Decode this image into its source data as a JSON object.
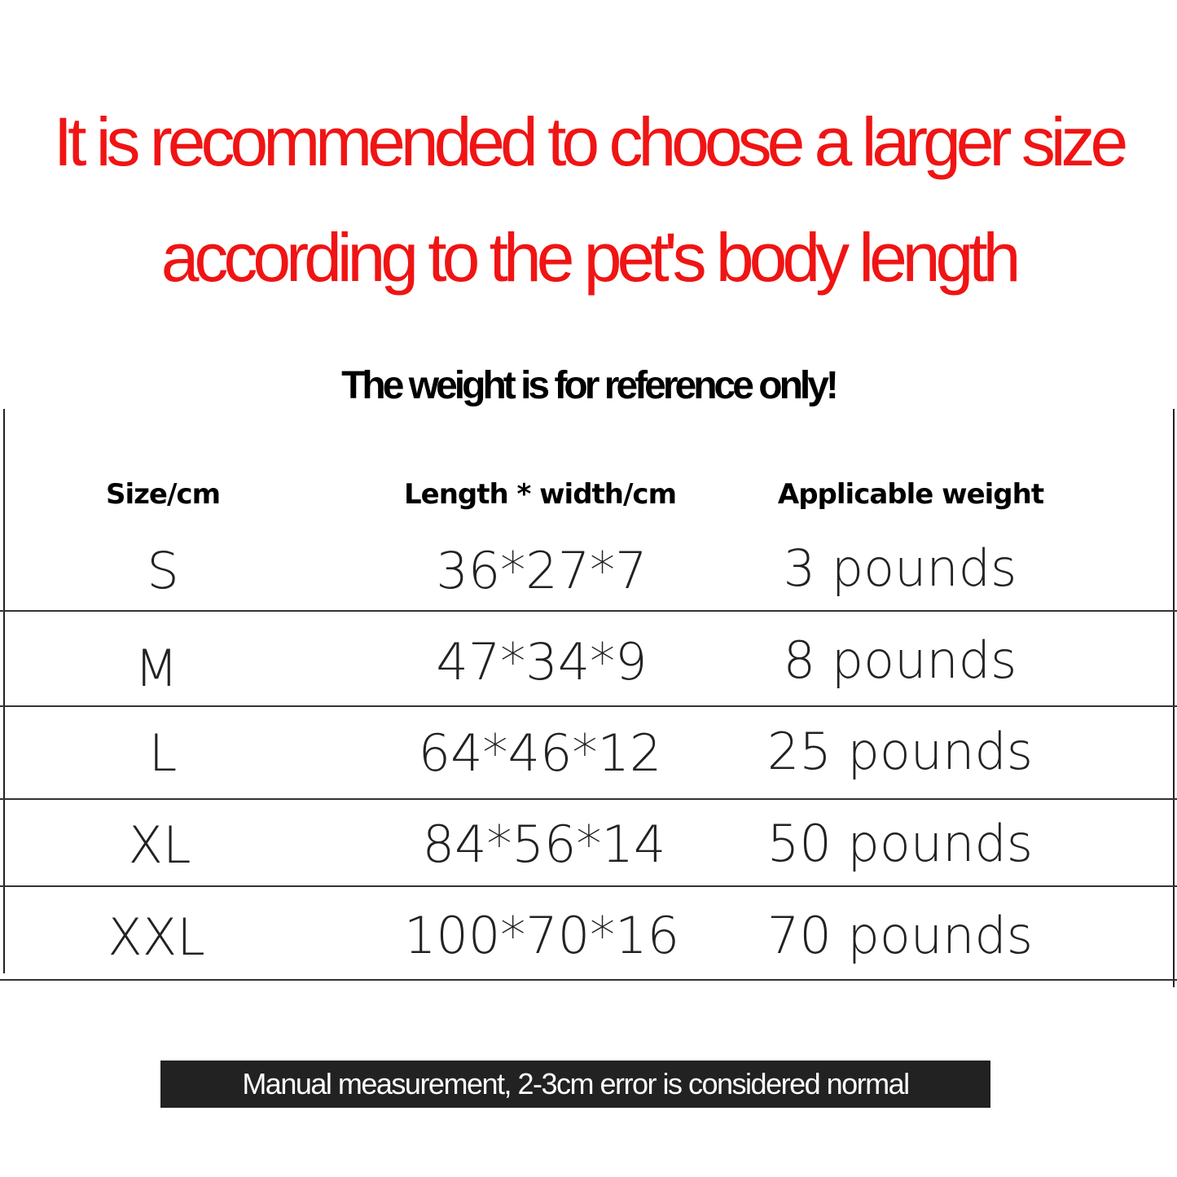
{
  "heading": {
    "line1": "It is recommended to choose a larger size",
    "line2": "according to the pet's body length",
    "color": "#f01414"
  },
  "subtitle": "The weight is for reference only!",
  "table": {
    "headers": [
      "Size/cm",
      "Length * width/cm",
      "Applicable weight"
    ],
    "rows": [
      {
        "size": "S",
        "dims": "36*27*7",
        "weight": "3 pounds"
      },
      {
        "size": "M",
        "dims": "47*34*9",
        "weight": "8 pounds"
      },
      {
        "size": "L",
        "dims": "64*46*12",
        "weight": "25 pounds"
      },
      {
        "size": "XL",
        "dims": "84*56*14",
        "weight": "50 pounds"
      },
      {
        "size": "XXL",
        "dims": "100*70*16",
        "weight": "70 pounds"
      }
    ]
  },
  "footer": "Manual measurement, 2-3cm error is considered normal"
}
